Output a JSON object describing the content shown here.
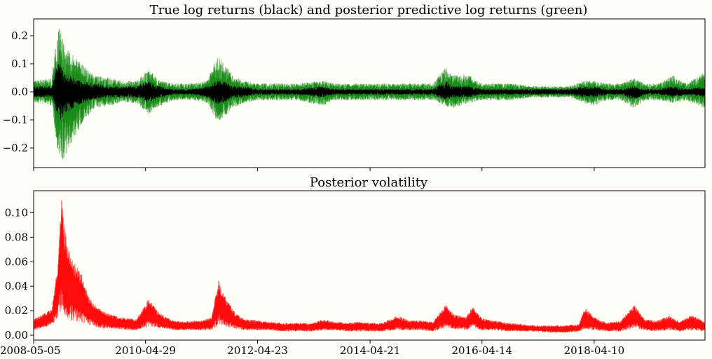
{
  "chart_data": [
    {
      "type": "line",
      "title": "True log returns (black) and posterior predictive log returns (green)",
      "xlabel": "",
      "ylabel": "",
      "xlim": [
        "2008-05-05",
        "2020-03-27"
      ],
      "ylim": [
        -0.27,
        0.26
      ],
      "yticks": [
        -0.2,
        -0.1,
        0.0,
        0.1,
        0.2
      ],
      "ytick_labels": [
        "−0.2",
        "−0.1",
        "0.0",
        "0.1",
        "0.2"
      ],
      "x_tick_dates": [
        "2008-05-05",
        "2010-04-29",
        "2012-04-23",
        "2014-04-21",
        "2016-04-14",
        "2018-04-10"
      ],
      "grid": false,
      "colors": {
        "true": "#000000",
        "predictive": "#008000"
      },
      "series": [
        {
          "role": "predictive envelope (green)",
          "x": [
            "2008-05-05",
            "2008-09-01",
            "2008-10-05",
            "2008-10-25",
            "2008-11-20",
            "2009-01-15",
            "2009-03-15",
            "2009-06-01",
            "2009-09-01",
            "2009-12-01",
            "2010-03-01",
            "2010-05-20",
            "2010-08-01",
            "2010-11-01",
            "2011-03-01",
            "2011-06-01",
            "2011-08-10",
            "2011-09-20",
            "2011-11-15",
            "2012-01-20",
            "2012-04-23",
            "2012-09-01",
            "2013-01-01",
            "2013-06-20",
            "2013-09-01",
            "2014-01-01",
            "2014-04-21",
            "2014-08-01",
            "2014-11-01",
            "2015-03-01",
            "2015-06-01",
            "2015-08-24",
            "2015-10-01",
            "2016-01-20",
            "2016-04-14",
            "2016-07-01",
            "2016-11-01",
            "2017-03-01",
            "2017-07-01",
            "2017-11-01",
            "2018-02-06",
            "2018-04-10",
            "2018-07-01",
            "2018-10-01",
            "2018-12-24",
            "2019-03-01",
            "2019-06-01",
            "2019-09-01",
            "2019-12-01",
            "2020-03-27"
          ],
          "upper": [
            0.04,
            0.05,
            0.22,
            0.23,
            0.16,
            0.13,
            0.1,
            0.06,
            0.05,
            0.04,
            0.04,
            0.08,
            0.04,
            0.03,
            0.03,
            0.04,
            0.13,
            0.1,
            0.06,
            0.04,
            0.03,
            0.03,
            0.03,
            0.04,
            0.03,
            0.03,
            0.03,
            0.03,
            0.03,
            0.03,
            0.03,
            0.09,
            0.06,
            0.06,
            0.03,
            0.03,
            0.03,
            0.02,
            0.02,
            0.02,
            0.04,
            0.04,
            0.03,
            0.03,
            0.05,
            0.03,
            0.03,
            0.06,
            0.03,
            0.07
          ],
          "lower": [
            -0.04,
            -0.05,
            -0.2,
            -0.24,
            -0.24,
            -0.17,
            -0.11,
            -0.06,
            -0.05,
            -0.04,
            -0.04,
            -0.08,
            -0.05,
            -0.03,
            -0.03,
            -0.04,
            -0.11,
            -0.09,
            -0.06,
            -0.04,
            -0.03,
            -0.03,
            -0.03,
            -0.05,
            -0.03,
            -0.03,
            -0.03,
            -0.03,
            -0.03,
            -0.03,
            -0.03,
            -0.05,
            -0.06,
            -0.04,
            -0.03,
            -0.03,
            -0.03,
            -0.02,
            -0.02,
            -0.02,
            -0.04,
            -0.05,
            -0.03,
            -0.03,
            -0.06,
            -0.03,
            -0.03,
            -0.04,
            -0.03,
            -0.06
          ]
        },
        {
          "role": "true log returns (black)",
          "x": [
            "2008-05-05",
            "2008-09-01",
            "2008-10-05",
            "2008-10-25",
            "2008-11-20",
            "2009-01-15",
            "2009-03-15",
            "2009-06-01",
            "2009-09-01",
            "2009-12-01",
            "2010-03-01",
            "2010-05-20",
            "2010-08-01",
            "2010-11-01",
            "2011-03-01",
            "2011-06-01",
            "2011-08-10",
            "2011-09-20",
            "2011-11-15",
            "2012-01-20",
            "2012-04-23",
            "2012-09-01",
            "2013-01-01",
            "2013-06-20",
            "2013-09-01",
            "2014-01-01",
            "2014-04-21",
            "2014-08-01",
            "2014-11-01",
            "2015-03-01",
            "2015-06-01",
            "2015-08-24",
            "2015-10-01",
            "2016-01-20",
            "2016-04-14",
            "2016-07-01",
            "2016-11-01",
            "2017-03-01",
            "2017-07-01",
            "2017-11-01",
            "2018-02-06",
            "2018-04-10",
            "2018-07-01",
            "2018-10-01",
            "2018-12-24",
            "2019-03-01",
            "2019-06-01",
            "2019-09-01",
            "2019-12-01",
            "2020-03-27"
          ],
          "upper": [
            0.02,
            0.02,
            0.1,
            0.11,
            0.07,
            0.05,
            0.04,
            0.03,
            0.02,
            0.02,
            0.02,
            0.04,
            0.02,
            0.01,
            0.01,
            0.02,
            0.04,
            0.04,
            0.02,
            0.02,
            0.01,
            0.01,
            0.01,
            0.02,
            0.01,
            0.01,
            0.01,
            0.01,
            0.01,
            0.01,
            0.01,
            0.04,
            0.02,
            0.02,
            0.01,
            0.01,
            0.01,
            0.01,
            0.01,
            0.01,
            0.02,
            0.02,
            0.01,
            0.01,
            0.02,
            0.01,
            0.01,
            0.02,
            0.01,
            0.02
          ],
          "lower": [
            -0.02,
            -0.02,
            -0.09,
            -0.11,
            -0.08,
            -0.06,
            -0.04,
            -0.03,
            -0.02,
            -0.02,
            -0.02,
            -0.04,
            -0.02,
            -0.01,
            -0.01,
            -0.02,
            -0.05,
            -0.04,
            -0.02,
            -0.02,
            -0.01,
            -0.01,
            -0.01,
            -0.02,
            -0.01,
            -0.01,
            -0.01,
            -0.01,
            -0.01,
            -0.01,
            -0.01,
            -0.03,
            -0.02,
            -0.02,
            -0.01,
            -0.01,
            -0.01,
            -0.01,
            -0.01,
            -0.01,
            -0.02,
            -0.02,
            -0.01,
            -0.01,
            -0.03,
            -0.01,
            -0.01,
            -0.02,
            -0.01,
            -0.02
          ]
        }
      ]
    },
    {
      "type": "line",
      "title": "Posterior volatility",
      "xlabel": "",
      "ylabel": "",
      "xlim": [
        "2008-05-05",
        "2020-03-27"
      ],
      "ylim": [
        -0.004,
        0.118
      ],
      "yticks": [
        0.0,
        0.02,
        0.04,
        0.06,
        0.08,
        0.1
      ],
      "ytick_labels": [
        "0.00",
        "0.02",
        "0.04",
        "0.06",
        "0.08",
        "0.10"
      ],
      "x_tick_dates": [
        "2008-05-05",
        "2010-04-29",
        "2012-04-23",
        "2014-04-21",
        "2016-04-14",
        "2018-04-10"
      ],
      "x_tick_labels": [
        "2008-05-05",
        "2010-04-29",
        "2012-04-23",
        "2014-04-21",
        "2016-04-14",
        "2018-04-10"
      ],
      "grid": false,
      "colors": {
        "volatility": "#ff0000"
      },
      "series": [
        {
          "role": "posterior volatility band (red)",
          "x": [
            "2008-05-05",
            "2008-07-01",
            "2008-09-01",
            "2008-10-10",
            "2008-11-01",
            "2008-11-25",
            "2009-01-01",
            "2009-03-10",
            "2009-05-01",
            "2009-07-01",
            "2009-09-01",
            "2009-11-01",
            "2010-01-01",
            "2010-03-01",
            "2010-05-20",
            "2010-07-15",
            "2010-09-01",
            "2010-11-01",
            "2011-01-01",
            "2011-03-01",
            "2011-05-01",
            "2011-07-01",
            "2011-08-15",
            "2011-10-01",
            "2011-12-01",
            "2012-02-01",
            "2012-04-23",
            "2012-07-01",
            "2012-10-01",
            "2013-01-01",
            "2013-04-01",
            "2013-06-25",
            "2013-09-01",
            "2013-12-01",
            "2014-02-01",
            "2014-04-21",
            "2014-07-01",
            "2014-10-15",
            "2015-01-01",
            "2015-03-15",
            "2015-06-01",
            "2015-08-25",
            "2015-10-15",
            "2016-01-01",
            "2016-02-15",
            "2016-04-14",
            "2016-07-01",
            "2016-10-01",
            "2017-01-01",
            "2017-04-01",
            "2017-07-01",
            "2017-10-01",
            "2018-01-01",
            "2018-02-10",
            "2018-04-10",
            "2018-07-01",
            "2018-10-01",
            "2018-12-25",
            "2019-03-01",
            "2019-05-20",
            "2019-08-10",
            "2019-10-15",
            "2020-01-01",
            "2020-03-27"
          ],
          "upper": [
            0.013,
            0.017,
            0.022,
            0.06,
            0.112,
            0.085,
            0.065,
            0.05,
            0.03,
            0.022,
            0.018,
            0.015,
            0.014,
            0.013,
            0.03,
            0.02,
            0.015,
            0.012,
            0.011,
            0.012,
            0.012,
            0.015,
            0.045,
            0.03,
            0.018,
            0.013,
            0.012,
            0.011,
            0.01,
            0.01,
            0.01,
            0.013,
            0.011,
            0.01,
            0.011,
            0.01,
            0.01,
            0.016,
            0.012,
            0.012,
            0.011,
            0.025,
            0.017,
            0.015,
            0.024,
            0.014,
            0.012,
            0.01,
            0.009,
            0.008,
            0.008,
            0.008,
            0.009,
            0.023,
            0.015,
            0.01,
            0.012,
            0.025,
            0.013,
            0.012,
            0.016,
            0.011,
            0.017,
            0.011
          ],
          "lower": [
            0.004,
            0.006,
            0.008,
            0.015,
            0.02,
            0.015,
            0.012,
            0.01,
            0.008,
            0.006,
            0.005,
            0.005,
            0.004,
            0.004,
            0.007,
            0.006,
            0.005,
            0.004,
            0.004,
            0.004,
            0.004,
            0.004,
            0.008,
            0.007,
            0.005,
            0.004,
            0.004,
            0.004,
            0.003,
            0.003,
            0.003,
            0.004,
            0.004,
            0.003,
            0.003,
            0.003,
            0.003,
            0.004,
            0.004,
            0.004,
            0.003,
            0.006,
            0.005,
            0.004,
            0.006,
            0.004,
            0.004,
            0.003,
            0.003,
            0.003,
            0.002,
            0.002,
            0.003,
            0.005,
            0.004,
            0.003,
            0.003,
            0.006,
            0.004,
            0.003,
            0.004,
            0.003,
            0.004,
            0.003
          ]
        }
      ]
    }
  ]
}
